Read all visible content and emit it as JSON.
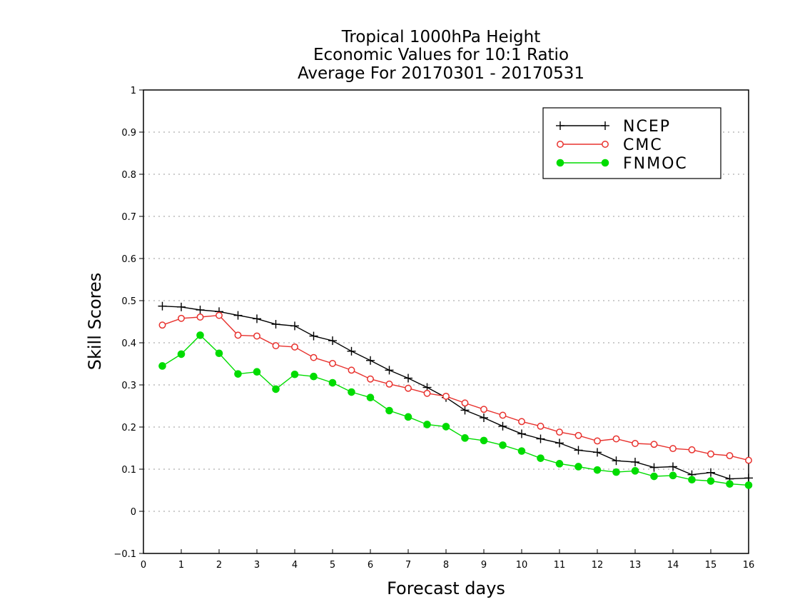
{
  "chart_data": {
    "type": "line",
    "title_lines": [
      "Tropical 1000hPa Height",
      "Economic Values for 10:1 Ratio",
      "Average For 20170301 - 20170531"
    ],
    "xlabel": "Forecast days",
    "ylabel": "Skill Scores",
    "xlim": [
      0,
      16
    ],
    "ylim": [
      -0.1,
      1
    ],
    "xticks": [
      0,
      1,
      2,
      3,
      4,
      5,
      6,
      7,
      8,
      9,
      10,
      11,
      12,
      13,
      14,
      15,
      16
    ],
    "xtick_labels": [
      "0",
      "1",
      "2",
      "3",
      "4",
      "5",
      "6",
      "7",
      "8",
      "9",
      "10",
      "11",
      "12",
      "13",
      "14",
      "15",
      "16"
    ],
    "yticks": [
      -0.1,
      0,
      0.1,
      0.2,
      0.3,
      0.4,
      0.5,
      0.6,
      0.7,
      0.8,
      0.9,
      1
    ],
    "ytick_labels": [
      "−0.1",
      "0",
      "0.1",
      "0.2",
      "0.3",
      "0.4",
      "0.5",
      "0.6",
      "0.7",
      "0.8",
      "0.9",
      "1"
    ],
    "grid": "horizontal dotted",
    "legend_position": "top-right",
    "x": [
      0.5,
      1,
      1.5,
      2,
      2.5,
      3,
      3.5,
      4,
      4.5,
      5,
      5.5,
      6,
      6.5,
      7,
      7.5,
      8,
      8.5,
      9,
      9.5,
      10,
      10.5,
      11,
      11.5,
      12,
      12.5,
      13,
      13.5,
      14,
      14.5,
      15,
      15.5,
      16
    ],
    "series": [
      {
        "name": "NCEP",
        "color": "#000000",
        "marker": "plus",
        "values": [
          0.487,
          0.485,
          0.478,
          0.474,
          0.465,
          0.457,
          0.444,
          0.44,
          0.416,
          0.405,
          0.38,
          0.358,
          0.335,
          0.316,
          0.294,
          0.27,
          0.24,
          0.222,
          0.202,
          0.184,
          0.172,
          0.162,
          0.145,
          0.14,
          0.12,
          0.117,
          0.104,
          0.106,
          0.087,
          0.092,
          0.077,
          0.079
        ]
      },
      {
        "name": "CMC",
        "color": "#e8322e",
        "marker": "open-circle",
        "values": [
          0.442,
          0.458,
          0.461,
          0.465,
          0.418,
          0.416,
          0.393,
          0.39,
          0.365,
          0.351,
          0.335,
          0.314,
          0.302,
          0.292,
          0.28,
          0.273,
          0.257,
          0.242,
          0.228,
          0.213,
          0.202,
          0.188,
          0.18,
          0.167,
          0.172,
          0.161,
          0.159,
          0.149,
          0.146,
          0.136,
          0.132,
          0.121
        ]
      },
      {
        "name": "FNMOC",
        "color": "#00dc00",
        "marker": "filled-circle",
        "values": [
          0.345,
          0.373,
          0.418,
          0.375,
          0.326,
          0.331,
          0.29,
          0.325,
          0.32,
          0.305,
          0.283,
          0.27,
          0.239,
          0.224,
          0.206,
          0.201,
          0.174,
          0.168,
          0.157,
          0.143,
          0.126,
          0.113,
          0.106,
          0.098,
          0.093,
          0.096,
          0.083,
          0.085,
          0.075,
          0.072,
          0.065,
          0.062
        ]
      }
    ]
  }
}
